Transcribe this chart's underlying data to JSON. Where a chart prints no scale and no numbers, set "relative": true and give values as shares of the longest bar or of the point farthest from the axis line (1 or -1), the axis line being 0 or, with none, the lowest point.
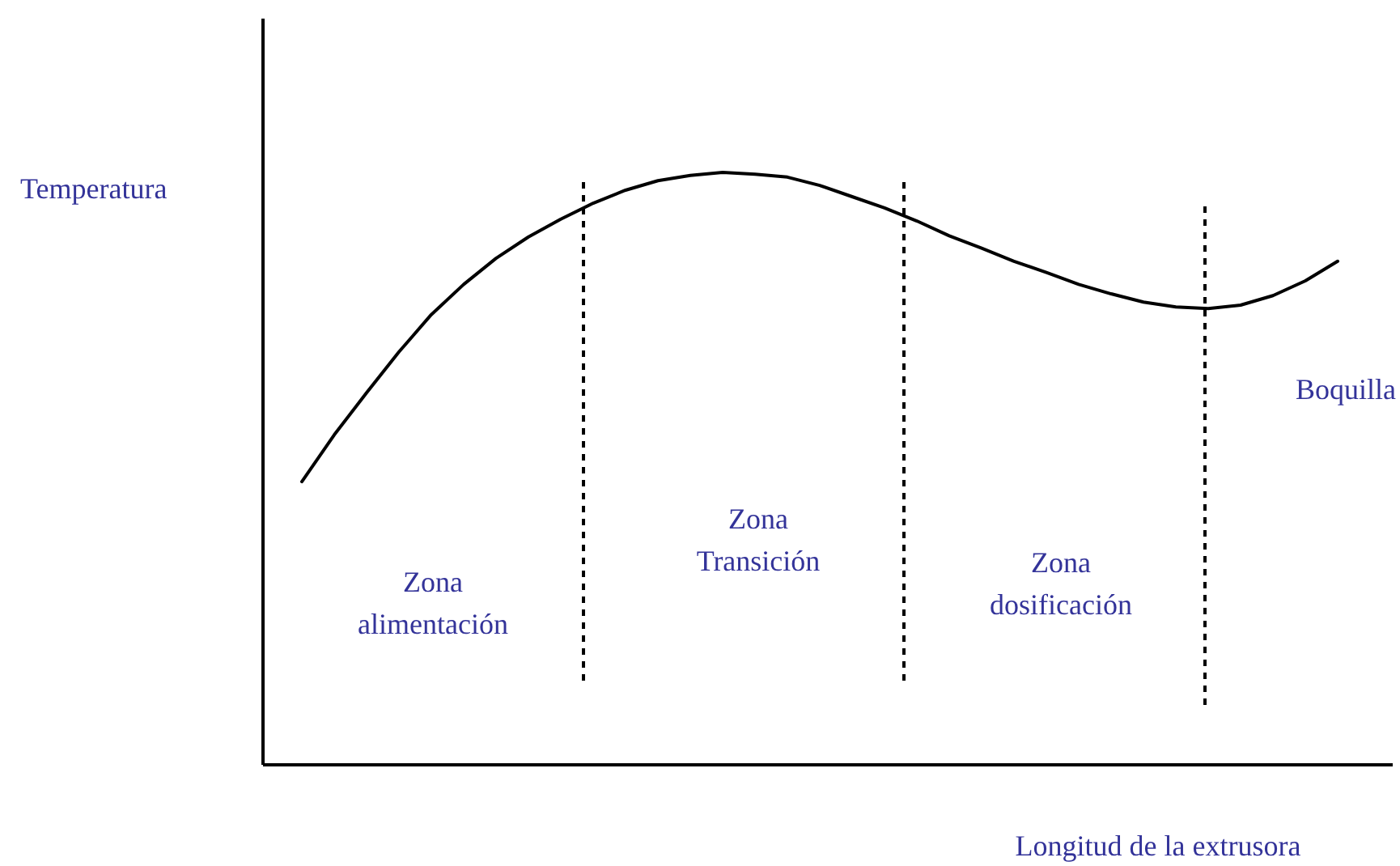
{
  "chart_data": {
    "type": "line",
    "relative": true,
    "xlabel": "Longitud de la extrusora",
    "ylabel": "Temperatura",
    "categories": [
      null,
      null,
      null,
      null,
      null,
      null,
      null,
      null,
      null,
      null,
      null,
      null,
      null,
      null,
      null,
      null,
      null,
      null,
      null,
      null,
      null,
      null,
      null,
      null,
      null,
      null,
      null,
      null,
      null,
      null,
      null,
      null,
      null
    ],
    "series": [
      {
        "color": "#000000",
        "values": [
          0.478,
          0.557,
          0.628,
          0.697,
          0.76,
          0.811,
          0.855,
          0.891,
          0.921,
          0.948,
          0.97,
          0.986,
          0.995,
          1.0,
          0.997,
          0.992,
          0.978,
          0.959,
          0.94,
          0.918,
          0.893,
          0.872,
          0.85,
          0.831,
          0.811,
          0.795,
          0.781,
          0.773,
          0.77,
          0.776,
          0.792,
          0.817,
          0.85
        ]
      }
    ],
    "annotations": [
      "Zona\nalimentación",
      "Zona\nTransición",
      "Zona\ndosificación",
      "Boquilla"
    ]
  }
}
